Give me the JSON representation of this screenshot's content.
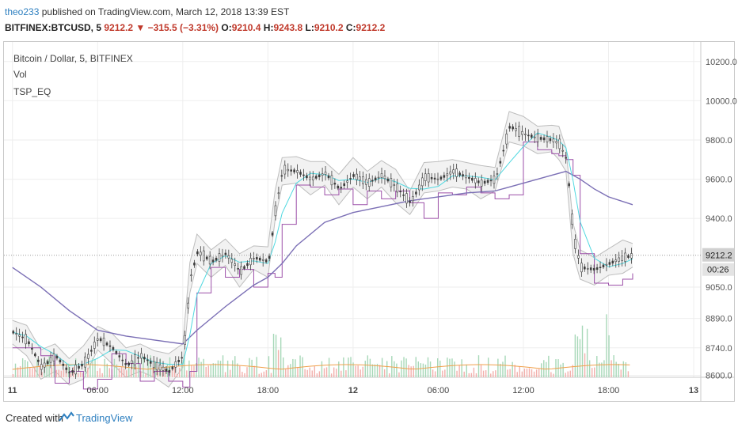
{
  "header": {
    "author": "theo233",
    "published_text": " published on TradingView.com, March 12, 2018 13:39 EST",
    "symbol": "BITFINEX:BTCUSD, 5",
    "last": "9212.2",
    "change": "−315.5 (−3.31%)",
    "o_label": "O:",
    "o_value": "9210.4",
    "h_label": "H:",
    "h_value": "9243.8",
    "l_label": "L:",
    "l_value": "9210.2",
    "c_label": "C:",
    "c_value": "9212.2"
  },
  "legend": {
    "series_label": "Bitcoin / Dollar, 5, BITFINEX",
    "vol_label": "Vol",
    "indicator_label": "TSP_EQ"
  },
  "price_badge": "9212.2",
  "countdown_badge": "00:26",
  "footer": {
    "created_with": "Created with",
    "brand": "TradingView"
  },
  "colors": {
    "candle": "#3d3d3d",
    "bollinger": "#bdbdbd",
    "bollinger_fill": "#f2f2f2",
    "cyan_ma": "#4fd8e0",
    "purple_ma": "#7b6fb5",
    "magenta_line": "#9c4fa8",
    "volume_up": "#a7d8b8",
    "volume_down": "#f2b0ac",
    "volume_ma": "#f0a04b",
    "grid": "#eeeeee"
  },
  "chart_data": {
    "type": "line",
    "y_ticks": [
      "10200.0",
      "10000.0",
      "9800.0",
      "9600.0",
      "9400.0",
      "9212.2",
      "9050.0",
      "8890.0",
      "8740.0",
      "8600.0"
    ],
    "y_tick_values": [
      10200,
      10000,
      9800,
      9600,
      9400,
      9212.2,
      9050,
      8890,
      8740,
      8600
    ],
    "x_ticks": [
      "11",
      "06:00",
      "12:00",
      "18:00",
      "12",
      "06:00",
      "12:00",
      "18:00",
      "13"
    ],
    "x_tick_hours": [
      0,
      6,
      12,
      18,
      24,
      30,
      36,
      42,
      48
    ],
    "x_range_hours": [
      -0.6,
      48.5
    ],
    "y_range": [
      8590,
      10300
    ],
    "series": [
      {
        "name": "Bitcoin / Dollar, 5, BITFINEX",
        "x": [
          0,
          1,
          2,
          3,
          4,
          5,
          6,
          7,
          8,
          9,
          10,
          11,
          12,
          12.5,
          13,
          14,
          15,
          16,
          17,
          18,
          18.5,
          19,
          20,
          21,
          22,
          23,
          24,
          25,
          26,
          27,
          28,
          29,
          30,
          31,
          32,
          33,
          34,
          35,
          36,
          37,
          38,
          38.5,
          39,
          39.5,
          40,
          41,
          42,
          43,
          43.7
        ],
        "y": [
          8820,
          8780,
          8640,
          8700,
          8610,
          8660,
          8790,
          8740,
          8650,
          8700,
          8650,
          8620,
          8700,
          9100,
          9230,
          9180,
          9220,
          9130,
          9200,
          9180,
          9450,
          9650,
          9640,
          9600,
          9630,
          9550,
          9620,
          9580,
          9620,
          9560,
          9480,
          9610,
          9600,
          9640,
          9610,
          9580,
          9600,
          9870,
          9830,
          9810,
          9800,
          9780,
          9700,
          9300,
          9150,
          9140,
          9170,
          9200,
          9212
        ]
      },
      {
        "name": "Vol",
        "x": [
          0,
          3,
          6,
          9,
          12,
          13,
          15,
          18,
          19,
          21,
          24,
          27,
          30,
          33,
          36,
          39,
          40,
          41,
          42,
          43
        ],
        "y": [
          8660,
          8650,
          8640,
          8660,
          8650,
          8700,
          8680,
          8750,
          8800,
          8700,
          8690,
          8680,
          8700,
          8680,
          8760,
          8780,
          8820,
          8740,
          8760,
          8700
        ]
      },
      {
        "name": "TSP_EQ",
        "x": [
          0,
          2,
          4,
          6,
          8,
          10,
          12,
          13,
          15,
          17,
          18,
          19,
          20,
          22,
          24,
          26,
          28,
          30,
          32,
          34,
          36,
          38,
          39,
          40,
          41,
          42,
          43.7
        ],
        "y": [
          9150,
          9050,
          8930,
          8830,
          8800,
          8780,
          8760,
          8830,
          8950,
          9060,
          9100,
          9170,
          9260,
          9380,
          9430,
          9460,
          9490,
          9510,
          9530,
          9540,
          9580,
          9620,
          9640,
          9600,
          9550,
          9510,
          9470
        ]
      }
    ]
  }
}
